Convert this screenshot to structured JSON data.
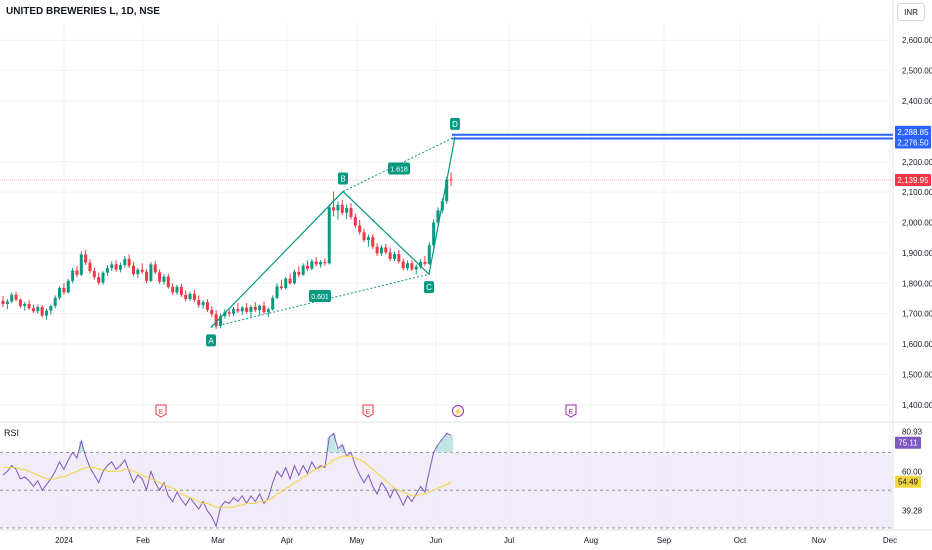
{
  "header": {
    "title": "UNITED BREWERIES L, 1D, NSE",
    "currency_button": "INR"
  },
  "rsi_panel": {
    "label": "RSI"
  },
  "colors": {
    "up": "#089981",
    "down": "#f23645",
    "pattern": "#089981",
    "blue_line": "#2962ff",
    "price_line": "#f23645",
    "rsi": "#7e57c2",
    "rsi_ma": "#f5d53c",
    "band_fill": "#ede7f6",
    "grid": "#f0f3fa",
    "axis_text": "#131722"
  },
  "chart_data": {
    "type": "candlestick",
    "price_axis": {
      "range": [
        1350,
        2660
      ],
      "ticks": [
        "2,600.00",
        "2,500.00",
        "2,400.00",
        "2,200.00",
        "2,100.00",
        "2,000.00",
        "1,900.00",
        "1,800.00",
        "1,700.00",
        "1,600.00",
        "1,500.00",
        "1,400.00"
      ],
      "tick_values": [
        2600,
        2500,
        2400,
        2200,
        2100,
        2000,
        1900,
        1800,
        1700,
        1600,
        1500,
        1400
      ]
    },
    "time_axis": {
      "labels": [
        "2024",
        "Feb",
        "Mar",
        "Apr",
        "May",
        "Jun",
        "Jul",
        "Aug",
        "Sep",
        "Oct",
        "Nov",
        "Dec"
      ]
    },
    "price_labels": [
      {
        "text": "2,288.85",
        "value": 2288.85,
        "color": "#2962ff"
      },
      {
        "text": "2,276.50",
        "value": 2276.5,
        "color": "#2962ff"
      },
      {
        "text": "2,139.95",
        "value": 2139.95,
        "color": "#f23645"
      }
    ],
    "horizontal_lines": [
      {
        "value": 2288.85,
        "color": "#2962ff"
      },
      {
        "value": 2276.5,
        "color": "#2962ff"
      }
    ],
    "harmonic_pattern": {
      "points": [
        {
          "label": "A",
          "value": 1655
        },
        {
          "label": "B",
          "value": 2102
        },
        {
          "label": "C",
          "value": 1830
        },
        {
          "label": "D",
          "value": 2282
        }
      ],
      "ratios": [
        "0.601",
        "1.618"
      ]
    },
    "event_markers": [
      "E",
      "E",
      "⚡",
      "E"
    ],
    "candles": [
      {
        "o": 1742,
        "h": 1758,
        "l": 1722,
        "c": 1732
      },
      {
        "o": 1732,
        "h": 1748,
        "l": 1715,
        "c": 1740
      },
      {
        "o": 1740,
        "h": 1770,
        "l": 1735,
        "c": 1762
      },
      {
        "o": 1762,
        "h": 1772,
        "l": 1740,
        "c": 1746
      },
      {
        "o": 1746,
        "h": 1750,
        "l": 1718,
        "c": 1725
      },
      {
        "o": 1725,
        "h": 1738,
        "l": 1710,
        "c": 1732
      },
      {
        "o": 1732,
        "h": 1745,
        "l": 1712,
        "c": 1718
      },
      {
        "o": 1718,
        "h": 1730,
        "l": 1702,
        "c": 1708
      },
      {
        "o": 1708,
        "h": 1730,
        "l": 1700,
        "c": 1722
      },
      {
        "o": 1722,
        "h": 1728,
        "l": 1688,
        "c": 1694
      },
      {
        "o": 1694,
        "h": 1716,
        "l": 1680,
        "c": 1710
      },
      {
        "o": 1710,
        "h": 1730,
        "l": 1698,
        "c": 1725
      },
      {
        "o": 1725,
        "h": 1760,
        "l": 1718,
        "c": 1752
      },
      {
        "o": 1752,
        "h": 1790,
        "l": 1745,
        "c": 1785
      },
      {
        "o": 1785,
        "h": 1800,
        "l": 1762,
        "c": 1770
      },
      {
        "o": 1770,
        "h": 1815,
        "l": 1766,
        "c": 1808
      },
      {
        "o": 1808,
        "h": 1850,
        "l": 1800,
        "c": 1842
      },
      {
        "o": 1842,
        "h": 1858,
        "l": 1820,
        "c": 1828
      },
      {
        "o": 1828,
        "h": 1905,
        "l": 1824,
        "c": 1895
      },
      {
        "o": 1895,
        "h": 1910,
        "l": 1860,
        "c": 1868
      },
      {
        "o": 1868,
        "h": 1880,
        "l": 1832,
        "c": 1840
      },
      {
        "o": 1840,
        "h": 1852,
        "l": 1812,
        "c": 1820
      },
      {
        "o": 1820,
        "h": 1835,
        "l": 1795,
        "c": 1802
      },
      {
        "o": 1802,
        "h": 1840,
        "l": 1795,
        "c": 1835
      },
      {
        "o": 1835,
        "h": 1860,
        "l": 1825,
        "c": 1850
      },
      {
        "o": 1850,
        "h": 1872,
        "l": 1840,
        "c": 1862
      },
      {
        "o": 1862,
        "h": 1876,
        "l": 1838,
        "c": 1845
      },
      {
        "o": 1845,
        "h": 1868,
        "l": 1836,
        "c": 1860
      },
      {
        "o": 1860,
        "h": 1890,
        "l": 1852,
        "c": 1880
      },
      {
        "o": 1880,
        "h": 1895,
        "l": 1850,
        "c": 1858
      },
      {
        "o": 1858,
        "h": 1870,
        "l": 1822,
        "c": 1830
      },
      {
        "o": 1830,
        "h": 1850,
        "l": 1818,
        "c": 1845
      },
      {
        "o": 1845,
        "h": 1866,
        "l": 1830,
        "c": 1838
      },
      {
        "o": 1838,
        "h": 1846,
        "l": 1800,
        "c": 1808
      },
      {
        "o": 1808,
        "h": 1870,
        "l": 1805,
        "c": 1862
      },
      {
        "o": 1862,
        "h": 1874,
        "l": 1830,
        "c": 1836
      },
      {
        "o": 1836,
        "h": 1845,
        "l": 1798,
        "c": 1805
      },
      {
        "o": 1805,
        "h": 1830,
        "l": 1795,
        "c": 1822
      },
      {
        "o": 1822,
        "h": 1832,
        "l": 1782,
        "c": 1788
      },
      {
        "o": 1788,
        "h": 1800,
        "l": 1762,
        "c": 1770
      },
      {
        "o": 1770,
        "h": 1795,
        "l": 1762,
        "c": 1788
      },
      {
        "o": 1788,
        "h": 1798,
        "l": 1755,
        "c": 1762
      },
      {
        "o": 1762,
        "h": 1776,
        "l": 1740,
        "c": 1748
      },
      {
        "o": 1748,
        "h": 1772,
        "l": 1742,
        "c": 1765
      },
      {
        "o": 1765,
        "h": 1778,
        "l": 1738,
        "c": 1745
      },
      {
        "o": 1745,
        "h": 1760,
        "l": 1720,
        "c": 1728
      },
      {
        "o": 1728,
        "h": 1745,
        "l": 1716,
        "c": 1738
      },
      {
        "o": 1738,
        "h": 1748,
        "l": 1705,
        "c": 1712
      },
      {
        "o": 1712,
        "h": 1725,
        "l": 1690,
        "c": 1698
      },
      {
        "o": 1698,
        "h": 1712,
        "l": 1650,
        "c": 1660
      },
      {
        "o": 1660,
        "h": 1700,
        "l": 1652,
        "c": 1692
      },
      {
        "o": 1692,
        "h": 1715,
        "l": 1684,
        "c": 1705
      },
      {
        "o": 1705,
        "h": 1718,
        "l": 1690,
        "c": 1700
      },
      {
        "o": 1700,
        "h": 1722,
        "l": 1692,
        "c": 1715
      },
      {
        "o": 1715,
        "h": 1735,
        "l": 1702,
        "c": 1708
      },
      {
        "o": 1708,
        "h": 1725,
        "l": 1696,
        "c": 1720
      },
      {
        "o": 1720,
        "h": 1735,
        "l": 1700,
        "c": 1706
      },
      {
        "o": 1706,
        "h": 1728,
        "l": 1690,
        "c": 1722
      },
      {
        "o": 1722,
        "h": 1738,
        "l": 1705,
        "c": 1712
      },
      {
        "o": 1712,
        "h": 1730,
        "l": 1695,
        "c": 1726
      },
      {
        "o": 1726,
        "h": 1740,
        "l": 1698,
        "c": 1705
      },
      {
        "o": 1705,
        "h": 1720,
        "l": 1688,
        "c": 1714
      },
      {
        "o": 1714,
        "h": 1760,
        "l": 1710,
        "c": 1752
      },
      {
        "o": 1752,
        "h": 1800,
        "l": 1748,
        "c": 1790
      },
      {
        "o": 1790,
        "h": 1812,
        "l": 1778,
        "c": 1784
      },
      {
        "o": 1784,
        "h": 1822,
        "l": 1780,
        "c": 1815
      },
      {
        "o": 1815,
        "h": 1832,
        "l": 1795,
        "c": 1800
      },
      {
        "o": 1800,
        "h": 1845,
        "l": 1796,
        "c": 1838
      },
      {
        "o": 1838,
        "h": 1856,
        "l": 1820,
        "c": 1828
      },
      {
        "o": 1828,
        "h": 1866,
        "l": 1824,
        "c": 1858
      },
      {
        "o": 1858,
        "h": 1875,
        "l": 1840,
        "c": 1848
      },
      {
        "o": 1848,
        "h": 1880,
        "l": 1844,
        "c": 1872
      },
      {
        "o": 1872,
        "h": 1886,
        "l": 1855,
        "c": 1862
      },
      {
        "o": 1862,
        "h": 1876,
        "l": 1852,
        "c": 1870
      },
      {
        "o": 1870,
        "h": 1882,
        "l": 1858,
        "c": 1866
      },
      {
        "o": 1866,
        "h": 2060,
        "l": 1862,
        "c": 2050
      },
      {
        "o": 2050,
        "h": 2102,
        "l": 2020,
        "c": 2040
      },
      {
        "o": 2040,
        "h": 2070,
        "l": 2010,
        "c": 2058
      },
      {
        "o": 2058,
        "h": 2075,
        "l": 2025,
        "c": 2032
      },
      {
        "o": 2032,
        "h": 2060,
        "l": 2012,
        "c": 2048
      },
      {
        "o": 2048,
        "h": 2064,
        "l": 2010,
        "c": 2018
      },
      {
        "o": 2018,
        "h": 2030,
        "l": 1982,
        "c": 1990
      },
      {
        "o": 1990,
        "h": 2008,
        "l": 1960,
        "c": 1968
      },
      {
        "o": 1968,
        "h": 1980,
        "l": 1935,
        "c": 1942
      },
      {
        "o": 1942,
        "h": 1960,
        "l": 1920,
        "c": 1952
      },
      {
        "o": 1952,
        "h": 1962,
        "l": 1912,
        "c": 1920
      },
      {
        "o": 1920,
        "h": 1932,
        "l": 1890,
        "c": 1898
      },
      {
        "o": 1898,
        "h": 1925,
        "l": 1890,
        "c": 1918
      },
      {
        "o": 1918,
        "h": 1930,
        "l": 1895,
        "c": 1902
      },
      {
        "o": 1902,
        "h": 1918,
        "l": 1872,
        "c": 1880
      },
      {
        "o": 1880,
        "h": 1904,
        "l": 1872,
        "c": 1896
      },
      {
        "o": 1896,
        "h": 1910,
        "l": 1865,
        "c": 1872
      },
      {
        "o": 1872,
        "h": 1882,
        "l": 1842,
        "c": 1850
      },
      {
        "o": 1850,
        "h": 1875,
        "l": 1842,
        "c": 1866
      },
      {
        "o": 1866,
        "h": 1876,
        "l": 1840,
        "c": 1846
      },
      {
        "o": 1846,
        "h": 1862,
        "l": 1830,
        "c": 1855
      },
      {
        "o": 1855,
        "h": 1880,
        "l": 1848,
        "c": 1870
      },
      {
        "o": 1870,
        "h": 1890,
        "l": 1858,
        "c": 1864
      },
      {
        "o": 1864,
        "h": 1935,
        "l": 1860,
        "c": 1925
      },
      {
        "o": 1925,
        "h": 2010,
        "l": 1918,
        "c": 2000
      },
      {
        "o": 2000,
        "h": 2050,
        "l": 1990,
        "c": 2040
      },
      {
        "o": 2040,
        "h": 2080,
        "l": 2030,
        "c": 2070
      },
      {
        "o": 2070,
        "h": 2150,
        "l": 2062,
        "c": 2142
      },
      {
        "o": 2142,
        "h": 2165,
        "l": 2120,
        "c": 2140
      }
    ],
    "rsi": {
      "label": "RSI",
      "range": [
        30,
        85
      ],
      "levels": [
        70,
        50,
        30
      ],
      "axis_labels": [
        {
          "text": "80.93",
          "value": 80.93
        },
        {
          "text": "60.00",
          "value": 60
        },
        {
          "text": "39.28",
          "value": 39.28
        }
      ],
      "value_tags": [
        {
          "text": "75.11",
          "value": 75.11,
          "color": "#7e57c2"
        },
        {
          "text": "54.49",
          "value": 54.49,
          "color": "#f5d53c"
        }
      ],
      "values": [
        58,
        60,
        63,
        61,
        56,
        57,
        55,
        52,
        55,
        50,
        53,
        56,
        60,
        65,
        61,
        66,
        70,
        67,
        76,
        68,
        62,
        58,
        54,
        60,
        63,
        65,
        61,
        63,
        66,
        60,
        54,
        58,
        56,
        50,
        60,
        54,
        50,
        54,
        47,
        44,
        49,
        45,
        42,
        46,
        43,
        40,
        44,
        39,
        36,
        31,
        41,
        44,
        43,
        46,
        44,
        47,
        43,
        47,
        44,
        48,
        43,
        46,
        54,
        60,
        57,
        62,
        56,
        63,
        58,
        63,
        59,
        65,
        61,
        63,
        62,
        78,
        80,
        72,
        74,
        68,
        70,
        63,
        58,
        54,
        58,
        52,
        48,
        54,
        51,
        46,
        51,
        47,
        42,
        47,
        44,
        48,
        52,
        49,
        60,
        70,
        74,
        77,
        80,
        79
      ],
      "ma": [
        62,
        62,
        62,
        62,
        61,
        61,
        60,
        59,
        58,
        57,
        56,
        56,
        56,
        57,
        57,
        58,
        59,
        60,
        61,
        62,
        62,
        62,
        61,
        61,
        60,
        60,
        60,
        60,
        61,
        61,
        60,
        59,
        58,
        57,
        56,
        55,
        54,
        53,
        52,
        51,
        50,
        48,
        47,
        46,
        45,
        44,
        43,
        43,
        42,
        41,
        41,
        41,
        41,
        41,
        42,
        42,
        43,
        43,
        43,
        44,
        44,
        45,
        46,
        48,
        49,
        51,
        52,
        54,
        55,
        57,
        58,
        60,
        61,
        62,
        63,
        64,
        66,
        67,
        68,
        68,
        68,
        67,
        66,
        65,
        63,
        61,
        59,
        57,
        55,
        53,
        51,
        50,
        49,
        48,
        47,
        47,
        48,
        48,
        49,
        50,
        51,
        52,
        53,
        54
      ]
    }
  }
}
